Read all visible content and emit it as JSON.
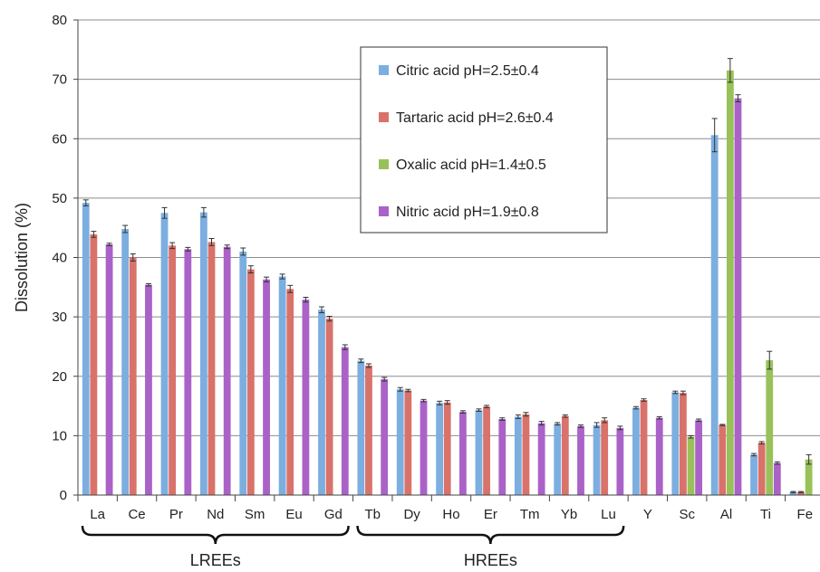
{
  "chart_data": {
    "type": "bar",
    "ylabel": "Dissolution (%)",
    "xlabel": "",
    "ylim": [
      0,
      80
    ],
    "yticks": [
      0,
      10,
      20,
      30,
      40,
      50,
      60,
      70,
      80
    ],
    "grid": true,
    "legend_position": "top-right",
    "categories": [
      "La",
      "Ce",
      "Pr",
      "Nd",
      "Sm",
      "Eu",
      "Gd",
      "Tb",
      "Dy",
      "Ho",
      "Er",
      "Tm",
      "Yb",
      "Lu",
      "Y",
      "Sc",
      "Al",
      "Ti",
      "Fe"
    ],
    "series": [
      {
        "name": "Citric acid pH=2.5±0.4",
        "color": "#7caee0",
        "values": [
          49.2,
          44.8,
          47.5,
          47.6,
          41.0,
          36.8,
          31.2,
          22.6,
          17.8,
          15.5,
          14.3,
          13.2,
          12.0,
          11.8,
          14.7,
          17.3,
          60.6,
          6.8,
          0.5
        ],
        "errors": [
          0.5,
          0.6,
          0.9,
          0.8,
          0.6,
          0.4,
          0.5,
          0.3,
          0.3,
          0.3,
          0.2,
          0.3,
          0.2,
          0.4,
          0.2,
          0.2,
          2.8,
          0.2,
          0.1
        ]
      },
      {
        "name": "Tartaric acid pH=2.6±0.4",
        "color": "#d9726a",
        "values": [
          43.9,
          40.0,
          42.0,
          42.6,
          38.0,
          34.7,
          29.7,
          21.8,
          17.6,
          15.6,
          14.9,
          13.6,
          13.3,
          12.6,
          16.0,
          17.2,
          11.8,
          8.8,
          0.5
        ],
        "errors": [
          0.5,
          0.6,
          0.5,
          0.6,
          0.6,
          0.6,
          0.4,
          0.3,
          0.2,
          0.3,
          0.2,
          0.3,
          0.2,
          0.4,
          0.2,
          0.3,
          0.1,
          0.2,
          0.1
        ]
      },
      {
        "name": "Oxalic acid pH=1.4±0.5",
        "color": "#99c15a",
        "values": [
          null,
          null,
          null,
          null,
          null,
          null,
          null,
          null,
          null,
          null,
          null,
          null,
          null,
          null,
          null,
          9.8,
          71.5,
          22.7,
          6.0
        ],
        "errors": [
          null,
          null,
          null,
          null,
          null,
          null,
          null,
          null,
          null,
          null,
          null,
          null,
          null,
          null,
          null,
          0.2,
          2.0,
          1.5,
          0.8
        ]
      },
      {
        "name": "Nitric acid pH=1.9±0.8",
        "color": "#aa62c8",
        "values": [
          42.2,
          35.4,
          41.4,
          41.8,
          36.3,
          32.9,
          24.9,
          19.5,
          15.9,
          14.0,
          12.8,
          12.1,
          11.6,
          11.3,
          13.0,
          12.6,
          66.8,
          5.4,
          null
        ],
        "errors": [
          0.2,
          0.2,
          0.3,
          0.3,
          0.4,
          0.4,
          0.4,
          0.3,
          0.2,
          0.2,
          0.2,
          0.3,
          0.2,
          0.3,
          0.2,
          0.2,
          0.6,
          0.2,
          null
        ]
      }
    ],
    "groups": [
      {
        "label": "LREEs",
        "from": "La",
        "to": "Gd"
      },
      {
        "label": "HREEs",
        "from": "Tb",
        "to": "Lu"
      }
    ]
  }
}
